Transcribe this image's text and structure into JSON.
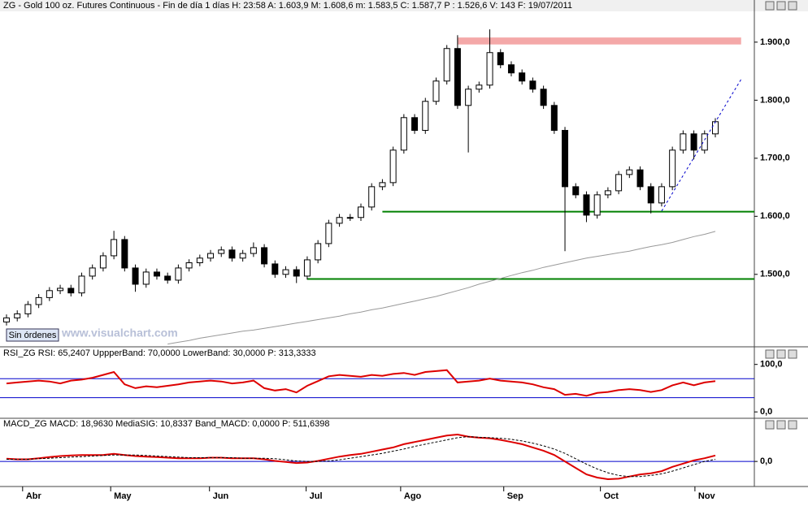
{
  "ui": {
    "button": "Sin órdenes",
    "watermark": "www.visualchart.com"
  },
  "chart_data": [
    {
      "type": "candlestick",
      "title": "ZG - Gold 100 oz. Futures Continuous - Fin de día 1 días H: 23:58 A: 1.603,9 M: 1.608,6 m: 1.583,5 C: 1.587,7 P : 1.526,6 V: 143 F: 19/07/2011",
      "categories": [
        null,
        null,
        null,
        null,
        null,
        null,
        null,
        null,
        null,
        null,
        null,
        null,
        null,
        null,
        null,
        null,
        null,
        null,
        null,
        null,
        null,
        null,
        null,
        null,
        null,
        null,
        null,
        null,
        null,
        null,
        null,
        null,
        null,
        null,
        null,
        null,
        null,
        null,
        null,
        null,
        null,
        null,
        null,
        null,
        null,
        null,
        null,
        null,
        null,
        null,
        null,
        null,
        null,
        null,
        null,
        null,
        null,
        null,
        null,
        null,
        null,
        null,
        null,
        null,
        null,
        null,
        null
      ],
      "open": [
        1418,
        1425,
        1432,
        1448,
        1460,
        1472,
        1476,
        1468,
        1497,
        1511,
        1532,
        1560,
        1511,
        1483,
        1504,
        1497,
        1490,
        1511,
        1520,
        1528,
        1536,
        1542,
        1528,
        1536,
        1546,
        1518,
        1500,
        1508,
        1497,
        1525,
        1553,
        1588,
        1598,
        1598,
        1616,
        1651,
        1658,
        1714,
        1770,
        1748,
        1798,
        1833,
        1889,
        1791,
        1819,
        1826,
        1882,
        1861,
        1847,
        1833,
        1819,
        1791,
        1748,
        1651,
        1637,
        1602,
        1637,
        1644,
        1672,
        1680,
        1651,
        1623,
        1651,
        1714,
        1742,
        1714,
        1742
      ],
      "high": [
        1431,
        1438,
        1454,
        1466,
        1478,
        1482,
        1482,
        1503,
        1517,
        1538,
        1575,
        1566,
        1517,
        1510,
        1510,
        1503,
        1517,
        1526,
        1534,
        1542,
        1548,
        1548,
        1542,
        1555,
        1552,
        1524,
        1514,
        1514,
        1531,
        1559,
        1594,
        1604,
        1604,
        1622,
        1657,
        1664,
        1720,
        1776,
        1776,
        1804,
        1839,
        1895,
        1912,
        1825,
        1832,
        1922,
        1888,
        1867,
        1853,
        1839,
        1825,
        1797,
        1754,
        1657,
        1643,
        1643,
        1650,
        1678,
        1686,
        1686,
        1657,
        1657,
        1720,
        1748,
        1748,
        1748,
        1769
      ],
      "low": [
        1412,
        1419,
        1426,
        1442,
        1454,
        1466,
        1462,
        1462,
        1491,
        1505,
        1526,
        1505,
        1470,
        1477,
        1491,
        1484,
        1484,
        1505,
        1514,
        1522,
        1530,
        1522,
        1522,
        1530,
        1512,
        1494,
        1494,
        1485,
        1491,
        1519,
        1547,
        1582,
        1592,
        1592,
        1610,
        1645,
        1652,
        1708,
        1742,
        1742,
        1792,
        1827,
        1785,
        1710,
        1813,
        1820,
        1855,
        1841,
        1827,
        1813,
        1785,
        1742,
        1540,
        1631,
        1590,
        1596,
        1631,
        1638,
        1666,
        1645,
        1605,
        1617,
        1645,
        1708,
        1698,
        1708,
        1736
      ],
      "close": [
        1425,
        1432,
        1448,
        1460,
        1472,
        1476,
        1468,
        1497,
        1511,
        1532,
        1560,
        1511,
        1483,
        1504,
        1497,
        1490,
        1511,
        1520,
        1528,
        1536,
        1542,
        1528,
        1536,
        1546,
        1518,
        1500,
        1508,
        1497,
        1525,
        1553,
        1588,
        1598,
        1598,
        1616,
        1651,
        1658,
        1714,
        1770,
        1748,
        1798,
        1833,
        1889,
        1791,
        1819,
        1826,
        1882,
        1861,
        1847,
        1833,
        1819,
        1791,
        1748,
        1651,
        1637,
        1602,
        1637,
        1644,
        1672,
        1680,
        1651,
        1623,
        1651,
        1714,
        1742,
        1714,
        1742,
        1763
      ],
      "up_color": "#ffffff",
      "down_color": "#000000",
      "ma": {
        "color": "#999999",
        "values": [
          null,
          null,
          null,
          null,
          null,
          null,
          null,
          null,
          null,
          null,
          null,
          null,
          null,
          null,
          null,
          1380,
          1383,
          1386,
          1390,
          1393,
          1396,
          1399,
          1402,
          1404,
          1407,
          1410,
          1413,
          1416,
          1419,
          1422,
          1425,
          1428,
          1432,
          1435,
          1439,
          1442,
          1446,
          1450,
          1454,
          1458,
          1462,
          1467,
          1472,
          1477,
          1483,
          1488,
          1493,
          1498,
          1503,
          1507,
          1512,
          1516,
          1520,
          1524,
          1528,
          1531,
          1534,
          1537,
          1540,
          1544,
          1548,
          1551,
          1555,
          1560,
          1565,
          1569,
          1574
        ]
      },
      "band": {
        "from_value": 1896,
        "to_value": 1908,
        "from": 42,
        "to": 68.4,
        "color": "#f4a8a8"
      },
      "hlines": [
        {
          "value": 1608,
          "from": 35,
          "color": "#008000"
        },
        {
          "value": 1492,
          "from": 28,
          "color": "#008000"
        }
      ],
      "trendline": {
        "points": [
          [
            61,
            1609
          ],
          [
            68.4,
            1836
          ]
        ],
        "color": "#0000cc"
      },
      "ylim": [
        1378,
        1953
      ],
      "yticks": [
        {
          "value": 1500,
          "label": "1.500,0"
        },
        {
          "value": 1600,
          "label": "1.600,0"
        },
        {
          "value": 1700,
          "label": "1.700,0"
        },
        {
          "value": 1800,
          "label": "1.800,0"
        },
        {
          "value": 1900,
          "label": "1.900,0"
        }
      ]
    },
    {
      "type": "line",
      "title": "RSI_ZG  RSI: 65,2407  UppperBand: 70,0000  LowerBand: 30,0000  P: 313,3333",
      "series": [
        {
          "color": "#dd0000",
          "values": [
            60,
            62,
            64,
            66,
            64,
            60,
            66,
            68,
            72,
            78,
            84,
            58,
            50,
            54,
            52,
            55,
            58,
            62,
            64,
            66,
            64,
            60,
            62,
            66,
            50,
            45,
            48,
            41,
            55,
            65,
            75,
            78,
            76,
            74,
            78,
            76,
            80,
            82,
            78,
            84,
            86,
            88,
            62,
            64,
            66,
            70,
            66,
            64,
            62,
            58,
            52,
            48,
            36,
            38,
            34,
            40,
            42,
            46,
            48,
            46,
            42,
            46,
            56,
            62,
            56,
            62,
            65
          ]
        }
      ],
      "hlines": [
        {
          "value": 70,
          "color": "#0000cc"
        },
        {
          "value": 30,
          "color": "#0000cc"
        }
      ],
      "ylim": [
        -10,
        120
      ],
      "yticks": [
        {
          "value": 0,
          "label": "0,0"
        },
        {
          "value": 100,
          "label": "100,0"
        }
      ]
    },
    {
      "type": "line",
      "title": "MACD_ZG  MACD: 18,9630  MediaSIG: 10,8337  Band_MACD: 0,0000  P: 511,6398",
      "series": [
        {
          "color": "#dd0000",
          "values": [
            5,
            4,
            4,
            6,
            8,
            10,
            11,
            12,
            12,
            12,
            14,
            12,
            10,
            9,
            8,
            7,
            6,
            6,
            6,
            7,
            7,
            6,
            6,
            6,
            4,
            1,
            -1,
            -3,
            -2,
            1,
            5,
            9,
            12,
            14,
            18,
            22,
            26,
            32,
            36,
            40,
            44,
            48,
            50,
            46,
            44,
            43,
            40,
            36,
            32,
            26,
            20,
            12,
            0,
            -12,
            -24,
            -30,
            -33,
            -32,
            -28,
            -24,
            -22,
            -18,
            -10,
            -4,
            2,
            6,
            11
          ]
        },
        {
          "color": "#000000",
          "dashed": true,
          "values": [
            4,
            4,
            4,
            5,
            6,
            7,
            8,
            9,
            10,
            11,
            12,
            12,
            12,
            11,
            10,
            9,
            8,
            7,
            7,
            7,
            7,
            7,
            6,
            6,
            6,
            5,
            3,
            1,
            0,
            0,
            1,
            3,
            6,
            9,
            12,
            15,
            19,
            23,
            28,
            32,
            36,
            40,
            44,
            46,
            45,
            44,
            43,
            41,
            38,
            34,
            29,
            23,
            15,
            5,
            -5,
            -14,
            -21,
            -26,
            -28,
            -28,
            -26,
            -23,
            -18,
            -12,
            -6,
            0,
            4
          ]
        }
      ],
      "hlines": [
        {
          "value": 0,
          "color": "#0000cc"
        }
      ],
      "ylim": [
        -45,
        65
      ],
      "yticks": [
        {
          "value": 0,
          "label": "0,0"
        }
      ],
      "xticks": [
        {
          "value": 1.5,
          "label": "Abr"
        },
        {
          "value": 9.7,
          "label": "May"
        },
        {
          "value": 18.9,
          "label": "Jun"
        },
        {
          "value": 27.9,
          "label": "Jul"
        },
        {
          "value": 36.7,
          "label": "Ago"
        },
        {
          "value": 46.3,
          "label": "Sep"
        },
        {
          "value": 55.3,
          "label": "Oct"
        },
        {
          "value": 64.1,
          "label": "Nov"
        }
      ]
    }
  ]
}
